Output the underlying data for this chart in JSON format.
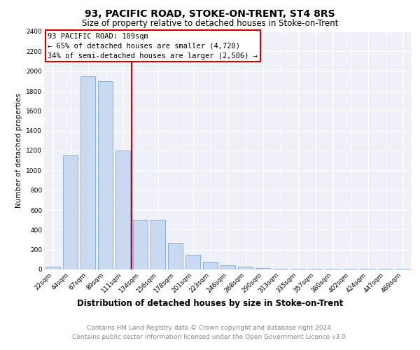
{
  "title1": "93, PACIFIC ROAD, STOKE-ON-TRENT, ST4 8RS",
  "title2": "Size of property relative to detached houses in Stoke-on-Trent",
  "xlabel": "Distribution of detached houses by size in Stoke-on-Trent",
  "ylabel": "Number of detached properties",
  "categories": [
    "22sqm",
    "44sqm",
    "67sqm",
    "89sqm",
    "111sqm",
    "134sqm",
    "156sqm",
    "178sqm",
    "201sqm",
    "223sqm",
    "246sqm",
    "268sqm",
    "290sqm",
    "313sqm",
    "335sqm",
    "357sqm",
    "380sqm",
    "402sqm",
    "424sqm",
    "447sqm",
    "469sqm"
  ],
  "values": [
    30,
    1150,
    1950,
    1900,
    1200,
    500,
    500,
    270,
    150,
    75,
    40,
    30,
    15,
    10,
    8,
    5,
    5,
    5,
    5,
    5,
    5
  ],
  "bar_color": "#c9d9f0",
  "bar_edge_color": "#7aaada",
  "property_line_index": 4,
  "property_line_color": "#cc0000",
  "annotation_line1": "93 PACIFIC ROAD: 109sqm",
  "annotation_line2": "← 65% of detached houses are smaller (4,720)",
  "annotation_line3": "34% of semi-detached houses are larger (2,506) →",
  "annotation_box_color": "#cc0000",
  "ylim": [
    0,
    2400
  ],
  "yticks": [
    0,
    200,
    400,
    600,
    800,
    1000,
    1200,
    1400,
    1600,
    1800,
    2000,
    2200,
    2400
  ],
  "footer1": "Contains HM Land Registry data © Crown copyright and database right 2024.",
  "footer2": "Contains public sector information licensed under the Open Government Licence v3.0.",
  "plot_bg_color": "#eef2f8",
  "grid_color": "#ffffff",
  "title1_fontsize": 10,
  "title2_fontsize": 8.5,
  "xlabel_fontsize": 8.5,
  "ylabel_fontsize": 7.5,
  "tick_fontsize": 6.5,
  "footer_fontsize": 6.5,
  "annotation_fontsize": 7.5
}
